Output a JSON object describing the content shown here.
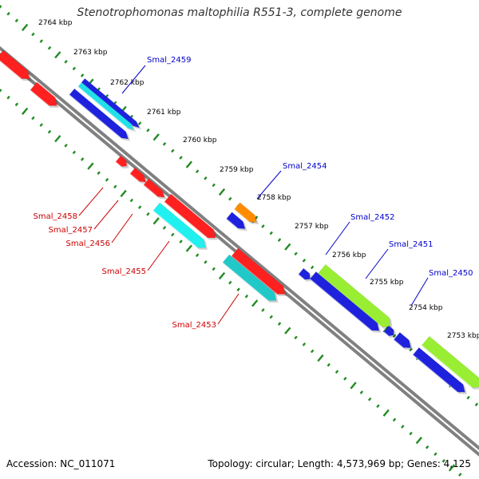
{
  "title": "Stenotrophomonas maltophilia R551-3, complete genome",
  "footer": {
    "accession": "Accession: NC_011071",
    "stats": "Topology: circular; Length: 4,573,969 bp; Genes: 4,125"
  },
  "colors": {
    "backbone": "#808080",
    "tick": "#228b22",
    "kbp_text": "#000000",
    "label_blue": "#0000cc",
    "label_red": "#cc0000"
  },
  "ticks": [
    "2764 kbp",
    "2763 kbp",
    "2762 kbp",
    "2761 kbp",
    "2760 kbp",
    "2759 kbp",
    "2758 kbp",
    "2757 kbp",
    "2756 kbp",
    "2755 kbp",
    "2754 kbp",
    "2753 kbp"
  ],
  "genes": [
    {
      "id": "red-a",
      "color": "#ff2020"
    },
    {
      "id": "red-b",
      "color": "#ff2020"
    },
    {
      "id": "Smal_2459",
      "color": "#1e22dd"
    },
    {
      "id": "Smal_2459-cyan",
      "color": "#20e0e8"
    },
    {
      "id": "blue-2459b",
      "color": "#1e22dd"
    },
    {
      "id": "Smal_2458",
      "color": "#ff2020"
    },
    {
      "id": "Smal_2457",
      "color": "#ff2020"
    },
    {
      "id": "Smal_2456",
      "color": "#ff2020"
    },
    {
      "id": "Smal_2455-red",
      "color": "#ff2020"
    },
    {
      "id": "Smal_2455",
      "color": "#20f0f0"
    },
    {
      "id": "Smal_2454",
      "color": "#ff8c00"
    },
    {
      "id": "blue-2454",
      "color": "#1e22dd"
    },
    {
      "id": "Smal_2453-red",
      "color": "#ff2020"
    },
    {
      "id": "Smal_2453",
      "color": "#20c8c8"
    },
    {
      "id": "blue-small",
      "color": "#1e22dd"
    },
    {
      "id": "Smal_2452",
      "color": "#99ee33"
    },
    {
      "id": "blue-2452",
      "color": "#1e22dd"
    },
    {
      "id": "blue-x1",
      "color": "#1e22dd"
    },
    {
      "id": "blue-x2",
      "color": "#1e22dd"
    },
    {
      "id": "Smal_2450",
      "color": "#99ee33"
    },
    {
      "id": "blue-2450",
      "color": "#1e22dd"
    }
  ],
  "labels": [
    {
      "text": "Smal_2459",
      "color": "#0000cc"
    },
    {
      "text": "Smal_2454",
      "color": "#0000cc"
    },
    {
      "text": "Smal_2452",
      "color": "#0000cc"
    },
    {
      "text": "Smal_2451",
      "color": "#0000cc"
    },
    {
      "text": "Smal_2450",
      "color": "#0000cc"
    },
    {
      "text": "Smal_2458",
      "color": "#cc0000"
    },
    {
      "text": "Smal_2457",
      "color": "#cc0000"
    },
    {
      "text": "Smal_2456",
      "color": "#cc0000"
    },
    {
      "text": "Smal_2455",
      "color": "#cc0000"
    },
    {
      "text": "Smal_2453",
      "color": "#cc0000"
    }
  ]
}
